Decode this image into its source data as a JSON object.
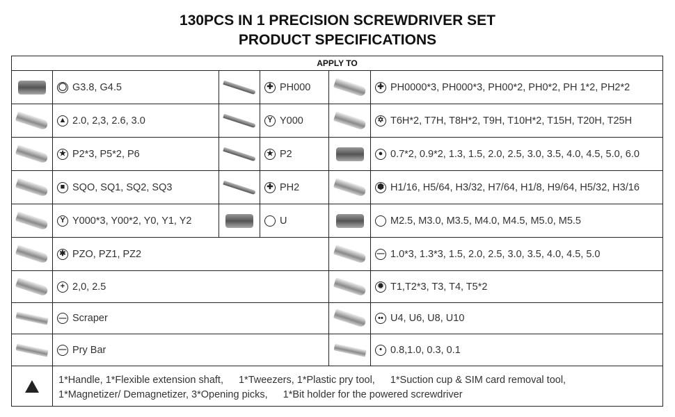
{
  "title_line1": "130PCS IN 1 PRECISION SCREWDRIVER SET",
  "title_line2": "PRODUCT SPECIFICATIONS",
  "header": "APPLY TO",
  "rows": [
    {
      "left": {
        "icon": "square-socket-icon",
        "glyph": "◯",
        "text": "G3.8, G4.5"
      },
      "mid": {
        "icon": "phillips-icon",
        "glyph": "✚",
        "text": "PH000"
      },
      "right": {
        "icon": "phillips-icon",
        "glyph": "✚",
        "text": "PH0000*3, PH000*3, PH00*2, PH0*2, PH 1*2, PH2*2"
      }
    },
    {
      "left": {
        "icon": "triangle-icon",
        "glyph": "▲",
        "text": "2.0, 2,3, 2.6, 3.0"
      },
      "mid": {
        "icon": "tri-wing-icon",
        "glyph": "Y",
        "text": "Y000"
      },
      "right": {
        "icon": "torx-security-icon",
        "glyph": "✡",
        "text": "T6H*2, T7H, T8H*2, T9H, T10H*2, T15H, T20H, T25H"
      }
    },
    {
      "left": {
        "icon": "pentalobe-icon",
        "glyph": "★",
        "text": "P2*3, P5*2, P6"
      },
      "mid": {
        "icon": "pentalobe-icon",
        "glyph": "★",
        "text": "P2"
      },
      "right": {
        "icon": "socket-icon",
        "glyph": "●",
        "text": "0.7*2, 0.9*2, 1.3, 1.5, 2.0, 2.5, 3.0, 3.5, 4.0, 4.5, 5.0, 6.0"
      }
    },
    {
      "left": {
        "icon": "square-icon",
        "glyph": "■",
        "text": "SQO, SQ1, SQ2, SQ3"
      },
      "mid": {
        "icon": "phillips-filled-icon",
        "glyph": "✚",
        "text": "PH2"
      },
      "right": {
        "icon": "hex-icon",
        "glyph": "⬢",
        "text": "H1/16, H5/64, H3/32, H7/64, H1/8, H9/64, H5/32, H3/16"
      }
    },
    {
      "left": {
        "icon": "tri-wing-icon",
        "glyph": "Y",
        "text": "Y000*3, Y00*2, Y0, Y1, Y2"
      },
      "mid": {
        "icon": "u-ring-icon",
        "glyph": "",
        "text": "U"
      },
      "right": {
        "icon": "ring-icon",
        "glyph": "",
        "text": "M2.5, M3.0, M3.5, M4.0, M4.5, M5.0, M5.5"
      }
    },
    {
      "left": {
        "icon": "pozidriv-icon",
        "glyph": "✱",
        "text": "PZO, PZ1, PZ2"
      },
      "right": {
        "icon": "slotted-icon",
        "glyph": "—",
        "text": "1.0*3, 1.3*3, 1.5, 2.0, 2.5, 3.0, 3.5, 4.0, 4.5, 5.0"
      }
    },
    {
      "left": {
        "icon": "cross-icon",
        "glyph": "+",
        "text": "2,0, 2.5"
      },
      "right": {
        "icon": "torx-icon",
        "glyph": "✹",
        "text": "T1,T2*3, T3, T4, T5*2"
      }
    },
    {
      "left": {
        "icon": "scraper-icon",
        "glyph": "—",
        "text": "Scraper"
      },
      "right": {
        "icon": "spanner-icon",
        "glyph": "••",
        "text": "U4, U6, U8, U10"
      }
    },
    {
      "left": {
        "icon": "pry-bar-icon",
        "glyph": "—",
        "text": "Pry Bar"
      },
      "right": {
        "icon": "dot-icon",
        "glyph": "•",
        "text": "0.8,1.0, 0.3, 0.1"
      }
    }
  ],
  "accessories": {
    "icon": "triangle-icon",
    "items": [
      "1*Handle, 1*Flexible extension shaft,",
      "1*Tweezers, 1*Plastic pry tool,",
      "1*Suction cup & SIM card removal tool,",
      "1*Magnetizer/ Demagnetizer, 3*Opening picks,",
      "1*Bit holder for the powered screwdriver"
    ]
  }
}
